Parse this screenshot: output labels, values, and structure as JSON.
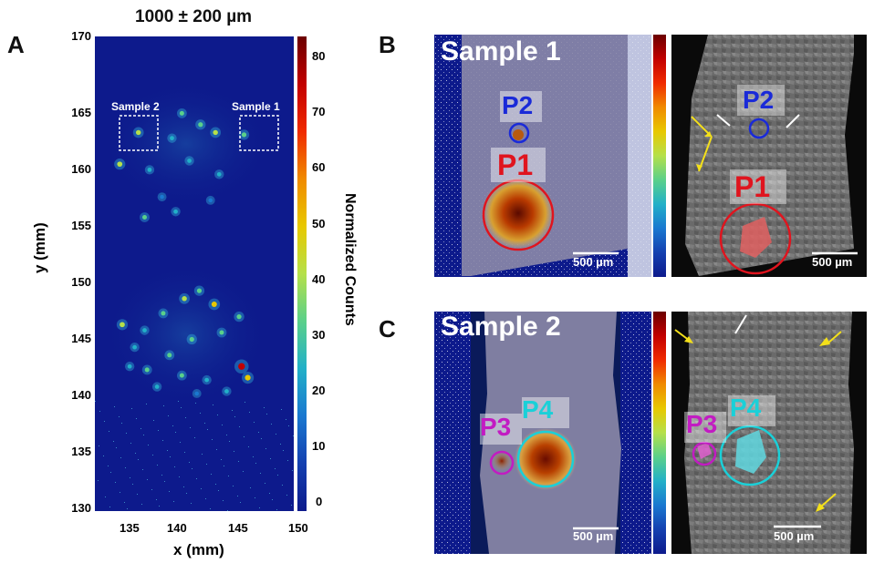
{
  "panels": {
    "a": {
      "letter": "A",
      "title": "1000 ± 200 µm",
      "xlabel": "x (mm)",
      "ylabel": "y (mm)",
      "xticks": [
        "135",
        "140",
        "145",
        "150"
      ],
      "yticks": [
        "130",
        "135",
        "140",
        "145",
        "150",
        "155",
        "160",
        "165",
        "170"
      ],
      "colorbar_label": "Normalized Counts",
      "colorbar_ticks": [
        "0",
        "10",
        "20",
        "30",
        "40",
        "50",
        "60",
        "70",
        "80"
      ],
      "box_labels": [
        "Sample 2",
        "Sample 1"
      ]
    },
    "b": {
      "letter": "B",
      "sample_label": "Sample 1",
      "markers": [
        "P2",
        "P1"
      ],
      "scalebar": "500 µm"
    },
    "c": {
      "letter": "C",
      "sample_label": "Sample 2",
      "markers": [
        "P3",
        "P4"
      ],
      "scalebar": "500 µm"
    }
  },
  "colors": {
    "heatmap_background": "#0d1a8c",
    "p1": "#e0141e",
    "p2": "#1a2ad8",
    "p3": "#c21bc2",
    "p4": "#1ad0d8",
    "arrow_yellow": "#f4e01a",
    "arrow_white": "#ffffff"
  },
  "chart_data": {
    "type": "heatmap",
    "title": "1000 ± 200 µm",
    "xlabel": "x (mm)",
    "ylabel": "y (mm)",
    "xlim": [
      134,
      150
    ],
    "ylim": [
      130,
      172
    ],
    "zlabel": "Normalized Counts",
    "zlim": [
      0,
      85
    ],
    "hotspots": [
      {
        "x": 137.5,
        "y": 163.5,
        "v": 40
      },
      {
        "x": 146.0,
        "y": 163.3,
        "v": 35
      },
      {
        "x": 136.0,
        "y": 160.7,
        "v": 45
      },
      {
        "x": 141.0,
        "y": 165.2,
        "v": 30
      },
      {
        "x": 142.5,
        "y": 164.2,
        "v": 35
      },
      {
        "x": 143.7,
        "y": 163.5,
        "v": 40
      },
      {
        "x": 140.2,
        "y": 163.0,
        "v": 25
      },
      {
        "x": 138.4,
        "y": 160.2,
        "v": 25
      },
      {
        "x": 141.6,
        "y": 161.0,
        "v": 25
      },
      {
        "x": 144.0,
        "y": 159.8,
        "v": 25
      },
      {
        "x": 139.4,
        "y": 157.8,
        "v": 20
      },
      {
        "x": 143.3,
        "y": 157.5,
        "v": 20
      },
      {
        "x": 140.5,
        "y": 156.5,
        "v": 25
      },
      {
        "x": 138.0,
        "y": 156.0,
        "v": 30
      },
      {
        "x": 142.4,
        "y": 149.5,
        "v": 35
      },
      {
        "x": 141.2,
        "y": 148.8,
        "v": 40
      },
      {
        "x": 143.6,
        "y": 148.3,
        "v": 50
      },
      {
        "x": 139.5,
        "y": 147.5,
        "v": 30
      },
      {
        "x": 145.6,
        "y": 147.2,
        "v": 35
      },
      {
        "x": 136.2,
        "y": 146.5,
        "v": 45
      },
      {
        "x": 138.0,
        "y": 146.0,
        "v": 25
      },
      {
        "x": 144.2,
        "y": 145.8,
        "v": 30
      },
      {
        "x": 141.8,
        "y": 145.2,
        "v": 35
      },
      {
        "x": 137.2,
        "y": 144.5,
        "v": 25
      },
      {
        "x": 140.0,
        "y": 143.8,
        "v": 30
      },
      {
        "x": 145.8,
        "y": 142.8,
        "v": 80
      },
      {
        "x": 146.3,
        "y": 141.8,
        "v": 55
      },
      {
        "x": 138.2,
        "y": 142.5,
        "v": 30
      },
      {
        "x": 136.8,
        "y": 142.8,
        "v": 25
      },
      {
        "x": 141.0,
        "y": 142.0,
        "v": 30
      },
      {
        "x": 143.0,
        "y": 141.6,
        "v": 25
      },
      {
        "x": 139.0,
        "y": 141.0,
        "v": 25
      },
      {
        "x": 142.2,
        "y": 140.4,
        "v": 20
      },
      {
        "x": 144.6,
        "y": 140.6,
        "v": 25
      }
    ]
  }
}
